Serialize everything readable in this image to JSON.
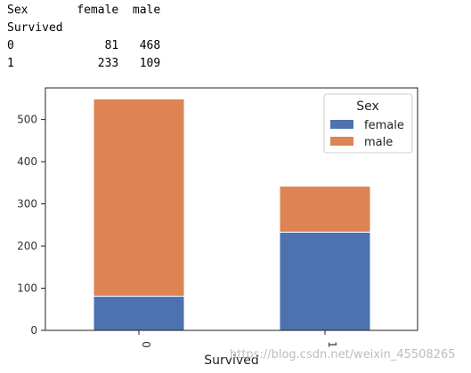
{
  "dataframe": {
    "lines": [
      "Sex       female  male",
      "Survived",
      "0             81   468",
      "1            233   109"
    ]
  },
  "chart_data": {
    "type": "bar",
    "stacked": true,
    "categories": [
      "0",
      "1"
    ],
    "series": [
      {
        "name": "female",
        "values": [
          81,
          233
        ],
        "color": "#4c72b0"
      },
      {
        "name": "male",
        "values": [
          468,
          109
        ],
        "color": "#dd8452"
      }
    ],
    "xlabel": "Survived",
    "ylabel": "",
    "ylim": [
      0,
      575
    ],
    "yticks": [
      0,
      100,
      200,
      300,
      400,
      500
    ],
    "legend_title": "Sex",
    "legend_position": "top-right",
    "grid": false
  },
  "watermark": "https://blog.csdn.net/weixin_45508265"
}
